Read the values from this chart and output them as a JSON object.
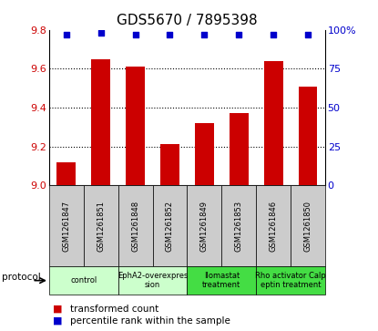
{
  "title": "GDS5670 / 7895398",
  "samples": [
    "GSM1261847",
    "GSM1261851",
    "GSM1261848",
    "GSM1261852",
    "GSM1261849",
    "GSM1261853",
    "GSM1261846",
    "GSM1261850"
  ],
  "bar_values": [
    9.12,
    9.65,
    9.61,
    9.21,
    9.32,
    9.37,
    9.64,
    9.51
  ],
  "dot_values": [
    97,
    98,
    97,
    97,
    97,
    97,
    97,
    97
  ],
  "bar_color": "#cc0000",
  "dot_color": "#0000cc",
  "ylim_left": [
    9.0,
    9.8
  ],
  "ylim_right": [
    0,
    100
  ],
  "yticks_left": [
    9.0,
    9.2,
    9.4,
    9.6,
    9.8
  ],
  "yticks_right": [
    0,
    25,
    50,
    75,
    100
  ],
  "protocols": [
    {
      "label": "control",
      "samples": [
        0,
        1
      ],
      "color": "#ccffcc"
    },
    {
      "label": "EphA2-overexpres\nsion",
      "samples": [
        2,
        3
      ],
      "color": "#ccffcc"
    },
    {
      "label": "Ilomastat\ntreatment",
      "samples": [
        4,
        5
      ],
      "color": "#44dd44"
    },
    {
      "label": "Rho activator Calp\neptin treatment",
      "samples": [
        6,
        7
      ],
      "color": "#44dd44"
    }
  ],
  "legend_bar_label": "transformed count",
  "legend_dot_label": "percentile rank within the sample",
  "protocol_label": "protocol",
  "bg_color": "#ffffff",
  "tick_label_color_left": "#cc0000",
  "tick_label_color_right": "#0000cc",
  "sample_box_color": "#cccccc",
  "title_fontsize": 11
}
